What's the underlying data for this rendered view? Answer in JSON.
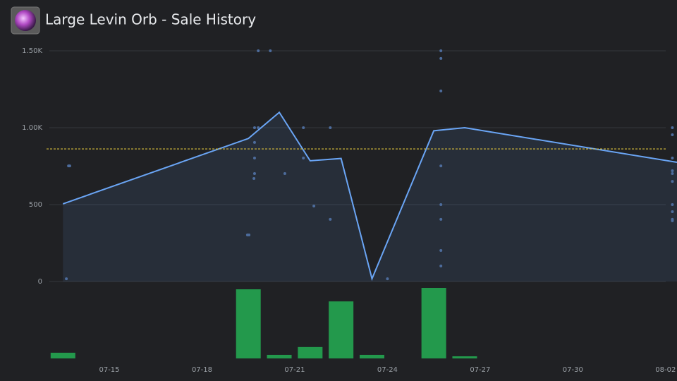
{
  "chart_data": {
    "type": "combo",
    "title": "Large Levin Orb - Sale History",
    "xlim": [
      13.06,
      33.37
    ],
    "xticks": [
      {
        "value": 15,
        "label": "07-15"
      },
      {
        "value": 18,
        "label": "07-18"
      },
      {
        "value": 21,
        "label": "07-21"
      },
      {
        "value": 24,
        "label": "07-24"
      },
      {
        "value": 27,
        "label": "07-27"
      },
      {
        "value": 30,
        "label": "07-30"
      },
      {
        "value": 33,
        "label": "08-02"
      }
    ],
    "ylim": [
      0,
      1500
    ],
    "yticks": [
      0,
      500,
      {
        "value": 1000,
        "label": "1.00K"
      },
      {
        "value": 1500,
        "label": "1.50K"
      }
    ],
    "grid": true,
    "average": 862,
    "average_color": "#d9bf3a",
    "series": [
      {
        "type": "area_line",
        "color": "#6aa5f5",
        "x": [
          13.5,
          19.5,
          20.5,
          21.5,
          22.5,
          23.5,
          25.5,
          26.5,
          33.37
        ],
        "values": [
          505,
          930,
          1100,
          785,
          800,
          18,
          980,
          1000,
          775
        ]
      },
      {
        "type": "scatter",
        "color": "#4d6c9c",
        "x": [
          13.61,
          13.68,
          13.72,
          19.47,
          19.52,
          19.68,
          19.7,
          19.7,
          19.7,
          19.7,
          19.82,
          19.82,
          20.21,
          20.68,
          21.28,
          21.28,
          21.62,
          22.15,
          22.15,
          24.0,
          25.73,
          25.73,
          25.73,
          25.73,
          25.73,
          25.73,
          25.73,
          25.73,
          33.22,
          33.22,
          33.22,
          33.22,
          33.22,
          33.22,
          33.22,
          33.22,
          33.22,
          33.22
        ],
        "values": [
          18,
          752,
          752,
          303,
          303,
          670,
          702,
          803,
          904,
          1000,
          1000,
          1500,
          1500,
          702,
          1000,
          803,
          491,
          1000,
          404,
          18,
          1500,
          1450,
          1239,
          752,
          500,
          404,
          202,
          101,
          1000,
          954,
          803,
          720,
          702,
          651,
          500,
          454,
          404,
          395
        ]
      },
      {
        "type": "bar",
        "color": "#23994c",
        "x": [
          13.5,
          19.5,
          20.5,
          21.5,
          22.5,
          23.5,
          25.5,
          26.5
        ],
        "values": [
          8,
          97,
          5,
          16,
          80,
          5,
          99,
          3
        ]
      }
    ]
  }
}
